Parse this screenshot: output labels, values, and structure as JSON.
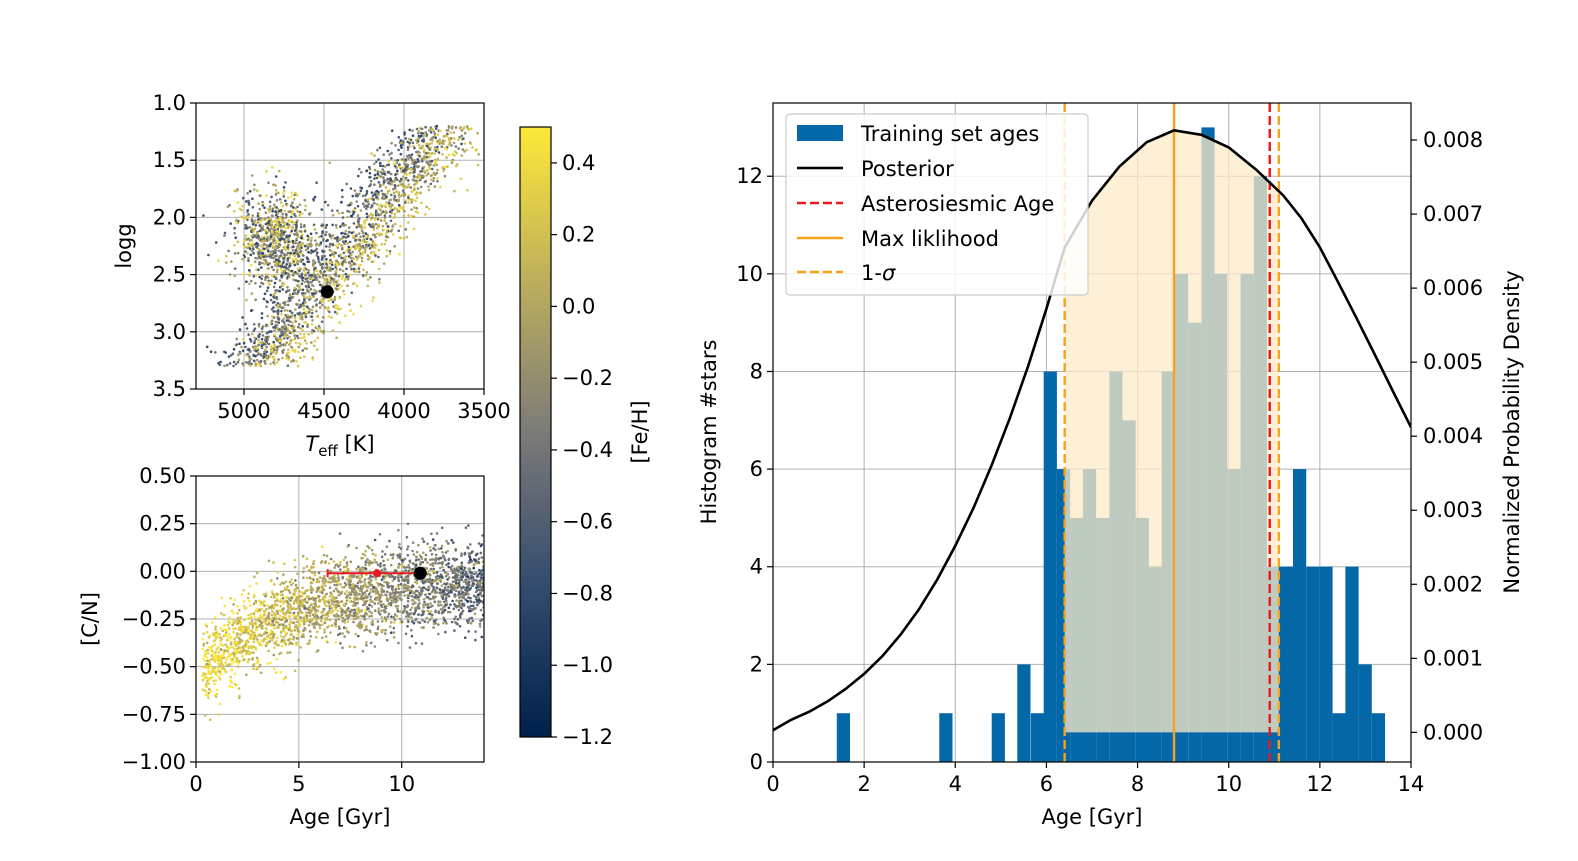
{
  "chart_data": [
    {
      "id": "hr",
      "type": "scatter",
      "title": "",
      "xlabel": "T",
      "xlabel_sub": "eff",
      "xlabel_unit": " [K]",
      "ylabel": "logg",
      "xlim": [
        5300,
        3500
      ],
      "ylim": [
        3.5,
        1.0
      ],
      "xticks": [
        5000,
        4500,
        4000,
        3500
      ],
      "yticks": [
        1.0,
        1.5,
        2.0,
        2.5,
        3.0,
        3.5
      ],
      "xtick_labels": [
        "5000",
        "4500",
        "4000",
        "3500"
      ],
      "ytick_labels": [
        "1.0",
        "1.5",
        "2.0",
        "2.5",
        "3.0",
        "3.5"
      ],
      "grid": true,
      "marker": {
        "x": 4480,
        "y": 2.65
      }
    },
    {
      "id": "cn",
      "type": "scatter",
      "title": "",
      "xlabel": "Age [Gyr]",
      "ylabel": "[C/N]",
      "xlim": [
        0,
        14
      ],
      "ylim": [
        -1.0,
        0.5
      ],
      "xticks": [
        0,
        5,
        10
      ],
      "yticks": [
        -1.0,
        -0.75,
        -0.5,
        -0.25,
        0.0,
        0.25,
        0.5
      ],
      "xtick_labels": [
        "0",
        "5",
        "10"
      ],
      "ytick_labels": [
        "−1.00",
        "−0.75",
        "−0.50",
        "−0.25",
        "0.00",
        "0.25",
        "0.50"
      ],
      "grid": true,
      "marker": {
        "x": 10.9,
        "y": -0.01
      },
      "errorbar": {
        "x": 8.8,
        "y": -0.01,
        "xmin": 6.4,
        "xmax": 11.1
      }
    },
    {
      "id": "colorbar",
      "type": "colorbar",
      "label": "[Fe/H]",
      "range": [
        -1.2,
        0.5
      ],
      "ticks": [
        -1.2,
        -1.0,
        -0.8,
        -0.6,
        -0.4,
        -0.2,
        0.0,
        0.2,
        0.4
      ],
      "tick_labels": [
        "−1.2",
        "−1.0",
        "−0.8",
        "−0.6",
        "−0.4",
        "−0.2",
        "0.0",
        "0.2",
        "0.4"
      ],
      "color_low": "#00204c",
      "color_mid": "#7c7b78",
      "color_high": "#fee838"
    },
    {
      "id": "hist",
      "type": "bar",
      "title": "",
      "xlabel": "Age [Gyr]",
      "ylabel": "Histogram #stars",
      "y2label": "Normalized Probability Density",
      "xlim": [
        0,
        14
      ],
      "ylim": [
        0,
        13.5
      ],
      "y2lim": [
        -0.0004,
        0.0085
      ],
      "xticks": [
        0,
        2,
        4,
        6,
        8,
        10,
        12,
        14
      ],
      "yticks": [
        0,
        2,
        4,
        6,
        8,
        10,
        12
      ],
      "y2ticks": [
        0.0,
        0.001,
        0.002,
        0.003,
        0.004,
        0.005,
        0.006,
        0.007,
        0.008
      ],
      "xtick_labels": [
        "0",
        "2",
        "4",
        "6",
        "8",
        "10",
        "12",
        "14"
      ],
      "ytick_labels": [
        "0",
        "2",
        "4",
        "6",
        "8",
        "10",
        "12"
      ],
      "y2tick_labels": [
        "0.000",
        "0.001",
        "0.002",
        "0.003",
        "0.004",
        "0.005",
        "0.006",
        "0.007",
        "0.008"
      ],
      "grid": true,
      "bin_width": 0.29,
      "bins_start": [
        1.4,
        3.65,
        4.8,
        5.36,
        5.66,
        5.94,
        6.23,
        6.52,
        6.8,
        7.09,
        7.38,
        7.67,
        7.96,
        8.24,
        8.53,
        8.82,
        9.11,
        9.4,
        9.68,
        9.97,
        10.26,
        10.55,
        10.84,
        11.12,
        11.41,
        11.7,
        11.99,
        12.28,
        12.56,
        12.85,
        13.14,
        13.43
      ],
      "counts": [
        1,
        1,
        1,
        2,
        1,
        8,
        6,
        5,
        6,
        5,
        8,
        7,
        5,
        4,
        8,
        10,
        9,
        13,
        10,
        6,
        10,
        12,
        4,
        4,
        6,
        4,
        4,
        1,
        4,
        2,
        1,
        0
      ],
      "posterior": {
        "x": [
          0,
          0.4,
          0.8,
          1.2,
          1.6,
          2.0,
          2.4,
          2.8,
          3.2,
          3.6,
          4.0,
          4.4,
          4.8,
          5.2,
          5.6,
          6.0,
          6.4,
          7.0,
          7.6,
          8.2,
          8.8,
          9.4,
          10.0,
          10.6,
          11.2,
          11.6,
          12.0,
          12.4,
          12.8,
          13.2,
          13.6,
          14.0
        ],
        "y": [
          3e-05,
          0.00017,
          0.00028,
          0.00042,
          0.00059,
          0.00079,
          0.00103,
          0.00132,
          0.00166,
          0.00206,
          0.00252,
          0.00303,
          0.00361,
          0.00425,
          0.00495,
          0.00572,
          0.00655,
          0.00718,
          0.00764,
          0.00797,
          0.00813,
          0.00807,
          0.0079,
          0.0076,
          0.00725,
          0.00694,
          0.00655,
          0.00608,
          0.0056,
          0.00511,
          0.00461,
          0.00412
        ]
      },
      "asteroseismic_age": 10.9,
      "max_likelihood": 8.8,
      "sigma_low": 6.4,
      "sigma_high": 11.1,
      "colors": {
        "bars": "#0468a8",
        "posterior": "#000000",
        "asteroseismic": "#e8191c",
        "max_likelihood": "#f7a21b",
        "sigma_fill": "#fdebc8"
      },
      "legend": [
        {
          "label": "Training set ages",
          "style": "patch"
        },
        {
          "label": "Posterior",
          "style": "line"
        },
        {
          "label": "Asterosiesmic Age",
          "style": "dashed-red"
        },
        {
          "label": "Max liklihood",
          "style": "solid-orange"
        },
        {
          "label": "1-",
          "symbol": "σ",
          "style": "dashed-orange"
        }
      ],
      "legend_position": "top-left"
    }
  ]
}
